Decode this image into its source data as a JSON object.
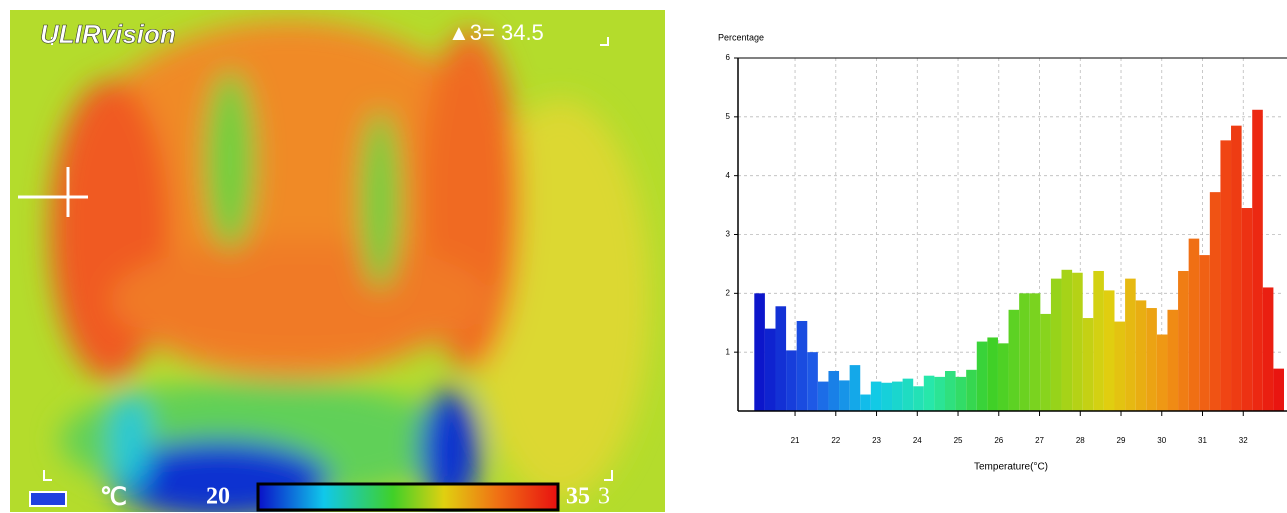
{
  "thermal_image": {
    "brand": "ULIRvision",
    "readout": "▲3= 34.5",
    "unit": "℃",
    "scale_min": "20",
    "scale_max": "35",
    "corner_mark": "3"
  },
  "chart_data": {
    "type": "histogram",
    "ylabel": "Percentage",
    "xlabel": "Temperature(°C)",
    "bins": [
      20,
      20.26,
      20.52,
      20.78,
      21.04,
      21.3,
      21.56,
      21.82,
      22.08,
      22.34,
      22.6,
      22.86,
      23.12,
      23.38,
      23.64,
      23.9,
      24.16,
      24.42,
      24.68,
      24.94,
      25.2,
      25.46,
      25.72,
      25.98,
      26.24,
      26.5,
      26.76,
      27.02,
      27.28,
      27.54,
      27.8,
      28.06,
      28.32,
      28.58,
      28.84,
      29.1,
      29.36,
      29.62,
      29.88,
      30.14,
      30.4,
      30.66,
      30.92,
      31.18,
      31.44,
      31.7,
      31.96,
      32.22,
      32.48,
      32.74,
      33
    ],
    "values": [
      2.0,
      1.4,
      1.78,
      1.03,
      1.53,
      1.0,
      0.5,
      0.68,
      0.52,
      0.78,
      0.28,
      0.5,
      0.48,
      0.5,
      0.55,
      0.42,
      0.6,
      0.58,
      0.68,
      0.58,
      0.7,
      1.18,
      1.25,
      1.15,
      1.72,
      2.0,
      2.0,
      1.65,
      2.25,
      2.4,
      2.35,
      1.58,
      2.38,
      2.05,
      1.52,
      2.25,
      1.88,
      1.75,
      1.3,
      1.72,
      2.38,
      2.93,
      2.65,
      3.72,
      4.6,
      4.85,
      3.45,
      5.12,
      2.1,
      0.72
    ],
    "colormap": [
      "#0a0fc8",
      "#1e5ae6",
      "#10c8ea",
      "#28e8a8",
      "#3cd028",
      "#8cd41c",
      "#e0d010",
      "#f09414",
      "#f04614",
      "#e81010"
    ],
    "xlim": [
      19.6,
      33
    ],
    "ylim": [
      0,
      6
    ],
    "xticks": [
      21,
      22,
      23,
      24,
      25,
      26,
      27,
      28,
      29,
      30,
      31,
      32
    ],
    "yticks": [
      1,
      2,
      3,
      4,
      5,
      6
    ],
    "grid": true
  }
}
